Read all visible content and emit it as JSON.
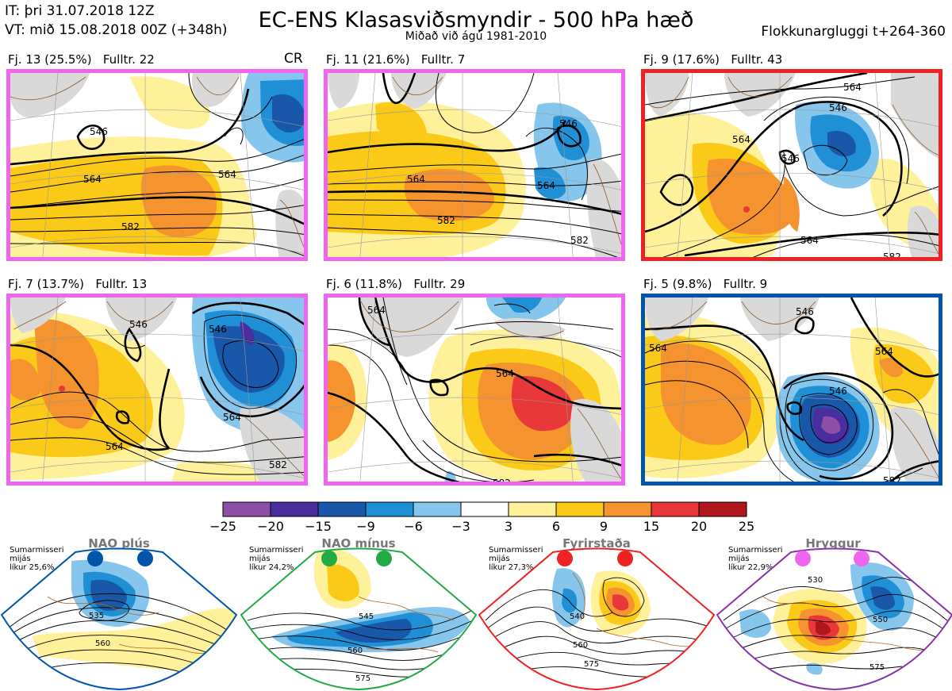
{
  "header": {
    "init_time": "IT: þri 31.07.2018 12Z",
    "valid_time": "VT: mið 15.08.2018 00Z  (+348h)",
    "title": "EC-ENS Klasasviðsmyndir - 500 hPa hæð",
    "subtitle": "Miðað við ágú 1981-2010",
    "window": "Flokkunargluggi t+264-360"
  },
  "cr_label": "CR",
  "colors": {
    "pink_frame": "#ee66ee",
    "red_frame": "#ee2222",
    "blue_frame": "#0055aa",
    "nao_plus": "#0055aa",
    "nao_minus": "#22aa44",
    "blocking": "#ee2222",
    "ridge": "#8833aa",
    "ridge_dot": "#ee66ee",
    "coast": "#8b5a2b"
  },
  "clusters": [
    {
      "label": "Fj. 13 (25.5%)",
      "members": "Fulltr. 22",
      "frame": "pink",
      "contour_labels": [
        "546",
        "564",
        "582",
        "564"
      ]
    },
    {
      "label": "Fj. 11 (21.6%)",
      "members": "Fulltr. 7",
      "frame": "pink",
      "contour_labels": [
        "546",
        "564",
        "582",
        "564",
        "582"
      ]
    },
    {
      "label": "Fj. 9 (17.6%)",
      "members": "Fulltr. 43",
      "frame": "red",
      "contour_labels": [
        "564",
        "546",
        "564",
        "546",
        "564",
        "582"
      ]
    },
    {
      "label": "Fj. 7 (13.7%)",
      "members": "Fulltr. 13",
      "frame": "pink",
      "contour_labels": [
        "546",
        "546",
        "564",
        "564",
        "582"
      ]
    },
    {
      "label": "Fj. 6 (11.8%)",
      "members": "Fulltr. 29",
      "frame": "pink",
      "contour_labels": [
        "564",
        "564",
        "582"
      ]
    },
    {
      "label": "Fj. 5 (9.8%)",
      "members": "Fulltr. 9",
      "frame": "blue",
      "contour_labels": [
        "546",
        "564",
        "546",
        "564",
        "582"
      ]
    }
  ],
  "colorbar": {
    "labels": [
      "−25",
      "−20",
      "−15",
      "−9",
      "−6",
      "−3",
      "3",
      "6",
      "9",
      "15",
      "20",
      "25"
    ],
    "colors": [
      "#8e4fa6",
      "#4b2e9e",
      "#1957a8",
      "#1f8fd6",
      "#86c6ec",
      "#ffffff",
      "#fff09a",
      "#fbc917",
      "#f5932e",
      "#e8383a",
      "#b1161c"
    ]
  },
  "regimes": [
    {
      "name": "NAO plús",
      "note": "Sumarmisseri\nmijás\nlíkur 25,6%",
      "contour_labels": [
        "535",
        "560"
      ],
      "dot": "nao_plus",
      "frame": "nao_plus"
    },
    {
      "name": "NAO mínus",
      "note": "Sumarmisseri\nmijás\nlíkur 24,2%",
      "contour_labels": [
        "545",
        "560",
        "575"
      ],
      "dot": "nao_minus",
      "frame": "nao_minus"
    },
    {
      "name": "Fyrirstaða",
      "note": "Sumarmisseri\nmijás\nlíkur 27,3%",
      "contour_labels": [
        "540",
        "560",
        "575"
      ],
      "dot": "blocking",
      "frame": "blocking"
    },
    {
      "name": "Hryggur",
      "note": "Sumarmisseri\nmijás\nlíkur 22,9%",
      "contour_labels": [
        "530",
        "550",
        "575"
      ],
      "dot": "ridge_dot",
      "frame": "ridge"
    }
  ]
}
